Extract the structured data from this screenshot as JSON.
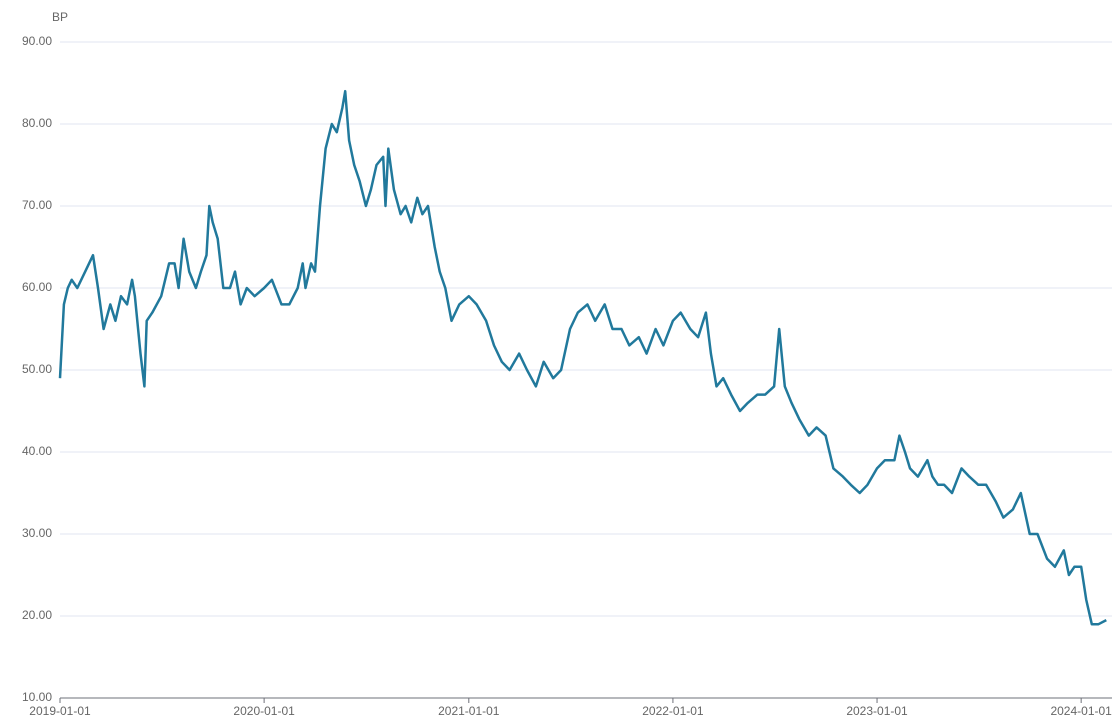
{
  "chart_data": {
    "type": "line",
    "y_label": "BP",
    "x": [
      "2019-01-01",
      "2019-01-08",
      "2019-01-15",
      "2019-01-22",
      "2019-02-01",
      "2019-02-15",
      "2019-03-01",
      "2019-03-10",
      "2019-03-20",
      "2019-04-01",
      "2019-04-10",
      "2019-04-20",
      "2019-05-01",
      "2019-05-10",
      "2019-05-15",
      "2019-05-25",
      "2019-06-01",
      "2019-06-05",
      "2019-06-15",
      "2019-07-01",
      "2019-07-15",
      "2019-07-25",
      "2019-08-01",
      "2019-08-10",
      "2019-08-20",
      "2019-09-01",
      "2019-09-10",
      "2019-09-20",
      "2019-09-25",
      "2019-10-01",
      "2019-10-10",
      "2019-10-20",
      "2019-11-01",
      "2019-11-10",
      "2019-11-20",
      "2019-12-01",
      "2019-12-15",
      "2020-01-01",
      "2020-01-15",
      "2020-02-01",
      "2020-02-15",
      "2020-03-01",
      "2020-03-10",
      "2020-03-15",
      "2020-03-25",
      "2020-04-01",
      "2020-04-10",
      "2020-04-20",
      "2020-05-01",
      "2020-05-10",
      "2020-05-20",
      "2020-05-25",
      "2020-06-01",
      "2020-06-10",
      "2020-06-20",
      "2020-07-01",
      "2020-07-10",
      "2020-07-20",
      "2020-08-01",
      "2020-08-05",
      "2020-08-10",
      "2020-08-20",
      "2020-09-01",
      "2020-09-10",
      "2020-09-20",
      "2020-10-01",
      "2020-10-10",
      "2020-10-20",
      "2020-11-01",
      "2020-11-10",
      "2020-11-20",
      "2020-12-01",
      "2020-12-15",
      "2021-01-01",
      "2021-01-15",
      "2021-02-01",
      "2021-02-15",
      "2021-03-01",
      "2021-03-15",
      "2021-04-01",
      "2021-04-15",
      "2021-05-01",
      "2021-05-15",
      "2021-06-01",
      "2021-06-15",
      "2021-07-01",
      "2021-07-15",
      "2021-08-01",
      "2021-08-15",
      "2021-09-01",
      "2021-09-15",
      "2021-10-01",
      "2021-10-15",
      "2021-11-01",
      "2021-11-15",
      "2021-12-01",
      "2021-12-15",
      "2022-01-01",
      "2022-01-15",
      "2022-02-01",
      "2022-02-15",
      "2022-03-01",
      "2022-03-10",
      "2022-03-20",
      "2022-04-01",
      "2022-04-15",
      "2022-05-01",
      "2022-05-15",
      "2022-06-01",
      "2022-06-15",
      "2022-07-01",
      "2022-07-10",
      "2022-07-20",
      "2022-08-01",
      "2022-08-15",
      "2022-09-01",
      "2022-09-15",
      "2022-10-01",
      "2022-10-15",
      "2022-11-01",
      "2022-11-15",
      "2022-12-01",
      "2022-12-15",
      "2023-01-01",
      "2023-01-15",
      "2023-02-01",
      "2023-02-10",
      "2023-02-20",
      "2023-03-01",
      "2023-03-15",
      "2023-04-01",
      "2023-04-10",
      "2023-04-20",
      "2023-05-01",
      "2023-05-15",
      "2023-06-01",
      "2023-06-15",
      "2023-07-01",
      "2023-07-15",
      "2023-08-01",
      "2023-08-15",
      "2023-09-01",
      "2023-09-15",
      "2023-10-01",
      "2023-10-15",
      "2023-11-01",
      "2023-11-15",
      "2023-12-01",
      "2023-12-10",
      "2023-12-20",
      "2024-01-01",
      "2024-01-10",
      "2024-01-20",
      "2024-02-01",
      "2024-02-15"
    ],
    "series": [
      {
        "name": "BP",
        "color": "#21799c",
        "values": [
          49,
          58,
          60,
          61,
          60,
          62,
          64,
          60,
          55,
          58,
          56,
          59,
          58,
          61,
          59,
          52,
          48,
          56,
          57,
          59,
          63,
          63,
          60,
          66,
          62,
          60,
          62,
          64,
          70,
          68,
          66,
          60,
          60,
          62,
          58,
          60,
          59,
          60,
          61,
          58,
          58,
          60,
          63,
          60,
          63,
          62,
          70,
          77,
          80,
          79,
          82,
          84,
          78,
          75,
          73,
          70,
          72,
          75,
          76,
          70,
          77,
          72,
          69,
          70,
          68,
          71,
          69,
          70,
          65,
          62,
          60,
          56,
          58,
          59,
          58,
          56,
          53,
          51,
          50,
          52,
          50,
          48,
          51,
          49,
          50,
          55,
          57,
          58,
          56,
          58,
          55,
          55,
          53,
          54,
          52,
          55,
          53,
          56,
          57,
          55,
          54,
          57,
          52,
          48,
          49,
          47,
          45,
          46,
          47,
          47,
          48,
          55,
          48,
          46,
          44,
          42,
          43,
          42,
          38,
          37,
          36,
          35,
          36,
          38,
          39,
          39,
          42,
          40,
          38,
          37,
          39,
          37,
          36,
          36,
          35,
          38,
          37,
          36,
          36,
          34,
          32,
          33,
          35,
          30,
          30,
          27,
          26,
          28,
          25,
          26,
          26,
          22,
          19,
          19,
          19.5
        ]
      }
    ],
    "xlim": [
      "2019-01-01",
      "2024-02-18"
    ],
    "xticks": [
      "2019-01-01",
      "2020-01-01",
      "2021-01-01",
      "2022-01-01",
      "2023-01-01",
      "2024-01-01"
    ],
    "ylim": [
      10,
      90
    ],
    "yticks": [
      {
        "value": 10,
        "label": "10.00"
      },
      {
        "value": 20,
        "label": "20.00"
      },
      {
        "value": 30,
        "label": "30.00"
      },
      {
        "value": 40,
        "label": "40.00"
      },
      {
        "value": 50,
        "label": "50.00"
      },
      {
        "value": 60,
        "label": "60.00"
      },
      {
        "value": 70,
        "label": "70.00"
      },
      {
        "value": 80,
        "label": "80.00"
      },
      {
        "value": 90,
        "label": "90.00"
      }
    ],
    "grid": true
  }
}
